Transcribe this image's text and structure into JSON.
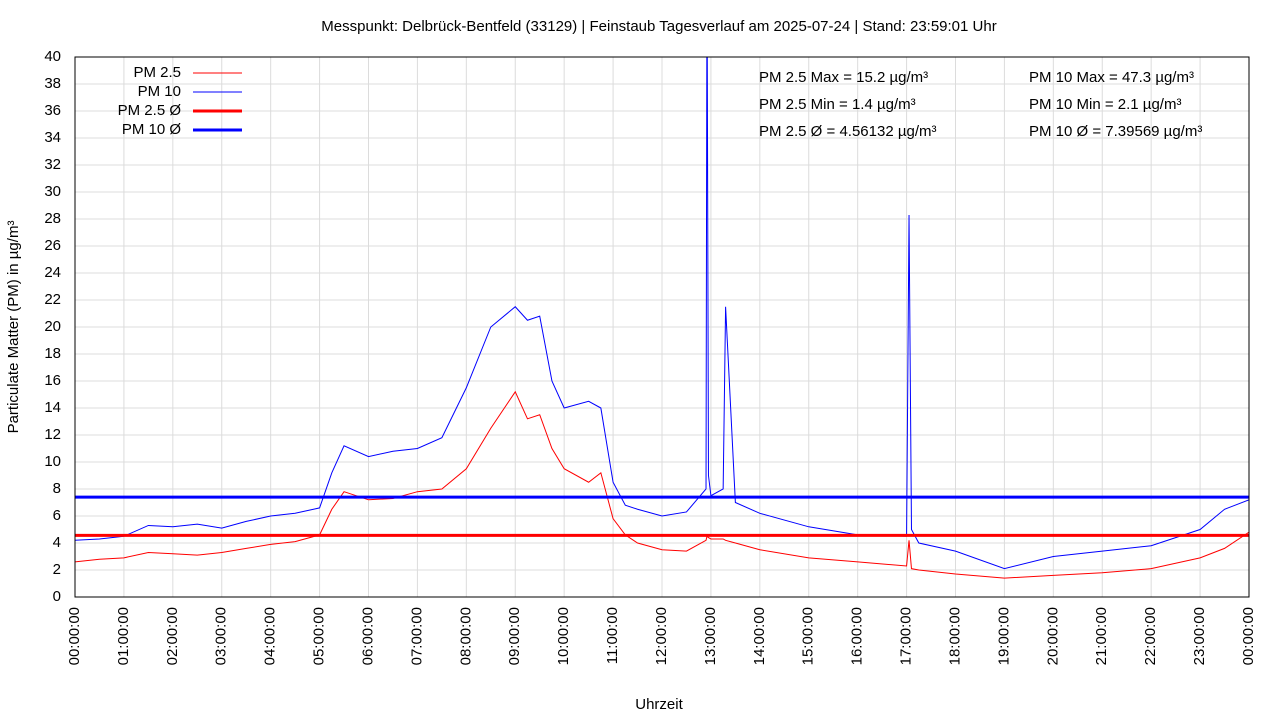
{
  "chart_data": {
    "type": "line",
    "title": "Messpunkt: Delbrück-Bentfeld (33129) | Feinstaub Tagesverlauf am 2025-07-24 | Stand: 23:59:01 Uhr",
    "x_label": "Uhrzeit",
    "y_label": "Particulate Matter (PM) in µg/m³",
    "xlim": [
      0,
      24
    ],
    "ylim": [
      0,
      40
    ],
    "xticks": [
      {
        "value": 0,
        "label": "00:00:00"
      },
      {
        "value": 1,
        "label": "01:00:00"
      },
      {
        "value": 2,
        "label": "02:00:00"
      },
      {
        "value": 3,
        "label": "03:00:00"
      },
      {
        "value": 4,
        "label": "04:00:00"
      },
      {
        "value": 5,
        "label": "05:00:00"
      },
      {
        "value": 6,
        "label": "06:00:00"
      },
      {
        "value": 7,
        "label": "07:00:00"
      },
      {
        "value": 8,
        "label": "08:00:00"
      },
      {
        "value": 9,
        "label": "09:00:00"
      },
      {
        "value": 10,
        "label": "10:00:00"
      },
      {
        "value": 11,
        "label": "11:00:00"
      },
      {
        "value": 12,
        "label": "12:00:00"
      },
      {
        "value": 13,
        "label": "13:00:00"
      },
      {
        "value": 14,
        "label": "14:00:00"
      },
      {
        "value": 15,
        "label": "15:00:00"
      },
      {
        "value": 16,
        "label": "16:00:00"
      },
      {
        "value": 17,
        "label": "17:00:00"
      },
      {
        "value": 18,
        "label": "18:00:00"
      },
      {
        "value": 19,
        "label": "19:00:00"
      },
      {
        "value": 20,
        "label": "20:00:00"
      },
      {
        "value": 21,
        "label": "21:00:00"
      },
      {
        "value": 22,
        "label": "22:00:00"
      },
      {
        "value": 23,
        "label": "23:00:00"
      },
      {
        "value": 24,
        "label": "00:00:00"
      }
    ],
    "yticks": [
      0,
      2,
      4,
      6,
      8,
      10,
      12,
      14,
      16,
      18,
      20,
      22,
      24,
      26,
      28,
      30,
      32,
      34,
      36,
      38,
      40
    ],
    "grid": true,
    "legend": "top-left",
    "x": [
      0,
      0.5,
      1,
      1.5,
      2,
      2.5,
      3,
      3.5,
      4,
      4.5,
      5,
      5.25,
      5.5,
      6,
      6.5,
      7,
      7.5,
      8,
      8.5,
      9,
      9.25,
      9.5,
      9.75,
      10,
      10.5,
      10.75,
      11,
      11.25,
      11.5,
      12,
      12.5,
      12.9,
      12.92,
      12.95,
      13,
      13.25,
      13.3,
      13.5,
      14,
      15,
      16,
      17,
      17.05,
      17.1,
      17.25,
      18,
      19,
      20,
      21,
      22,
      23,
      23.5,
      24
    ],
    "series": [
      {
        "name": "PM 2.5",
        "color": "#ff0000",
        "line_width": 1,
        "values": [
          2.6,
          2.8,
          2.9,
          3.3,
          3.2,
          3.1,
          3.3,
          3.6,
          3.9,
          4.1,
          4.6,
          6.5,
          7.8,
          7.2,
          7.3,
          7.8,
          8,
          9.5,
          12.5,
          15.2,
          13.2,
          13.5,
          11,
          9.5,
          8.5,
          9.2,
          5.8,
          4.6,
          4,
          3.5,
          3.4,
          4.2,
          4.5,
          4.4,
          4.3,
          4.3,
          4.2,
          4,
          3.5,
          2.9,
          2.6,
          2.3,
          4.2,
          2.1,
          2,
          1.7,
          1.4,
          1.6,
          1.8,
          2.1,
          2.9,
          3.6,
          4.8
        ]
      },
      {
        "name": "PM 10",
        "color": "#0000ff",
        "line_width": 1,
        "values": [
          4.2,
          4.3,
          4.5,
          5.3,
          5.2,
          5.4,
          5.1,
          5.6,
          6,
          6.2,
          6.6,
          9.2,
          11.2,
          10.4,
          10.8,
          11,
          11.8,
          15.5,
          20,
          21.5,
          20.5,
          20.8,
          16,
          14,
          14.5,
          14,
          8.5,
          6.8,
          6.5,
          6,
          6.3,
          8,
          47.3,
          9,
          7.5,
          8,
          21.5,
          7,
          6.2,
          5.2,
          4.6,
          4.5,
          28.3,
          5,
          4,
          3.4,
          2.1,
          3,
          3.4,
          3.8,
          5,
          6.5,
          7.2
        ]
      }
    ],
    "averages": [
      {
        "name": "PM 2.5 Ø",
        "color": "#ff0000",
        "line_width": 3,
        "value": 4.56132
      },
      {
        "name": "PM 10 Ø",
        "color": "#0000ff",
        "line_width": 3,
        "value": 7.39569
      }
    ],
    "annotations": [
      {
        "text": "PM 2.5 Max = 15.2 µg/m³",
        "color": "#ff0000"
      },
      {
        "text": "PM 2.5 Min = 1.4 µg/m³",
        "color": "#ff0000"
      },
      {
        "text": "PM 2.5 Ø = 4.56132 µg/m³",
        "color": "#ff0000"
      },
      {
        "text": "PM 10 Max = 47.3 µg/m³",
        "color": "#0000ff"
      },
      {
        "text": "PM 10 Min = 2.1 µg/m³",
        "color": "#0000ff"
      },
      {
        "text": "PM 10 Ø = 7.39569 µg/m³",
        "color": "#0000ff"
      }
    ]
  }
}
